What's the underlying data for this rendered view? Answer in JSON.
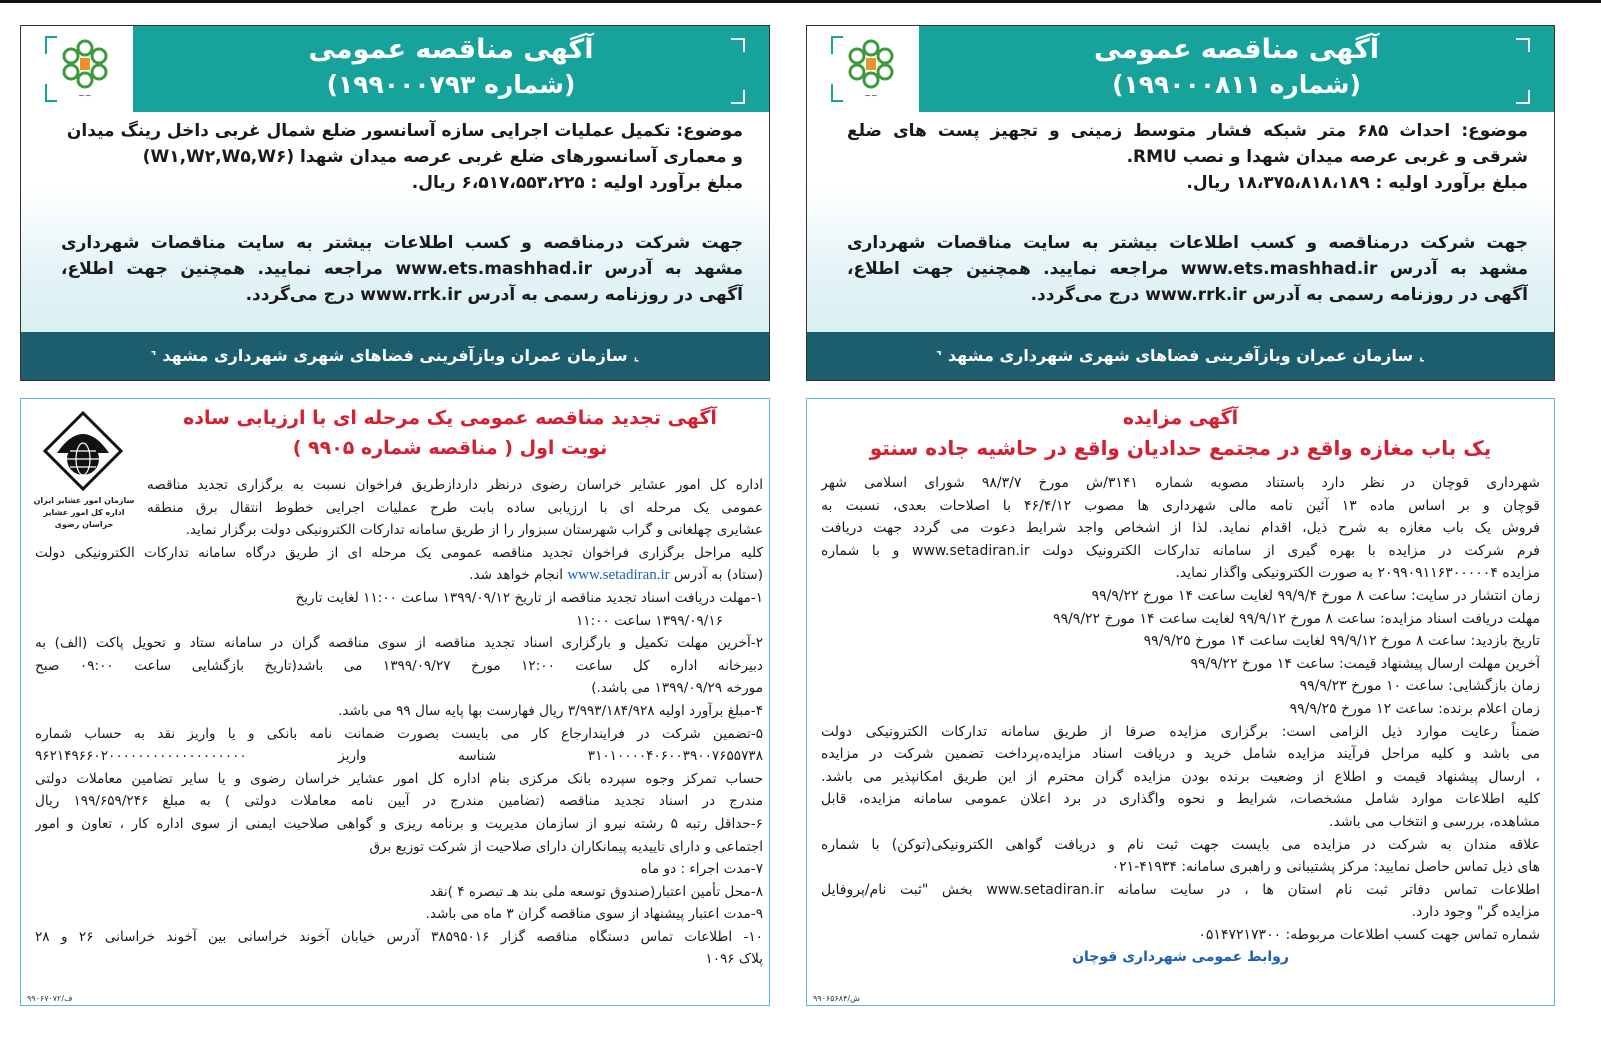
{
  "tender_right": {
    "title": "آگهی مناقصه عمومی",
    "number": "(شماره ۱۹۹۰۰۰۸۱۱)",
    "lines": [
      "موضوع: احداث ۶۸۵ متر شبکه فشار متوسط زمینی و تجهیز پست های ضلع",
      "شرقی و غربی عرصه میدان شهدا و نصب RMU.",
      "مبلغ برآورد اولیه : ۱۸،۳۷۵،۸۱۸،۱۸۹ ریال."
    ],
    "info": [
      "جهت شرکت درمناقصه و کسب اطلاعات بیشتر به سایت مناقصات شهرداری",
      "مشهد به آدرس www.ets.mashhad.ir مراجعه نمایید. همچنین جهت اطلاع،",
      "آگهی در روزنامه رسمی به آدرس www.rrk.ir درج می‌گردد."
    ],
    "footer": "سازمان عمران وبازآفرینی فضاهای شهری شهرداری مشهد"
  },
  "tender_left": {
    "title": "آگهی مناقصه عمومی",
    "number": "(شماره ۱۹۹۰۰۰۷۹۳)",
    "lines": [
      "موضوع: تکمیل عملیات اجرایی سازه آسانسور ضلع شمال غربی داخل رینگ میدان W۵",
      "و معماری آسانسورهای ضلع غربی عرصه میدان شهدا (W۱,W۲,W۵,W۶)",
      "مبلغ برآورد اولیه : ۶،۵۱۷،۵۵۳،۲۲۵ ریال."
    ],
    "info": [
      "جهت شرکت درمناقصه و کسب اطلاعات بیشتر به سایت مناقصات شهرداری",
      "مشهد به آدرس www.ets.mashhad.ir مراجعه نمایید. همچنین جهت اطلاع،",
      "آگهی در روزنامه رسمی به آدرس www.rrk.ir درج می‌گردد."
    ],
    "footer": "سازمان عمران وبازآفرینی فضاهای شهری شهرداری مشهد"
  },
  "auction": {
    "title": "آگهی مزایده",
    "subtitle": "یک باب مغازه واقع در مجتمع حدادیان واقع در حاشیه جاده سنتو",
    "lines": [
      "شهرداری قوچان در نظر دارد باستناد مصوبه شماره ۳۱۴۱/ش مورخ ۹۸/۳/۷ شورای اسلامی شهر",
      "قوچان و بر اساس ماده ۱۳ آئین نامه مالی شهرداری ها مصوب ۴۶/۴/۱۲ با اصلاحات بعدی، نسبت به",
      "فروش یک باب مغازه به شرح ذیل، اقدام نماید. لذا از اشخاص واجد شرایط دعوت می گردد جهت دریافت",
      "فرم شرکت در مزایده با بهره گیری از سامانه تدارکات الکترونیک دولت www.setadiran.ir و با شماره",
      "مزایده ۲۰۹۹۰۹۱۱۶۳۰۰۰۰۰۴ به صورت الکترونیکی واگذار نماید.",
      "زمان انتشار در سایت: ساعت ۸ مورخ ۹۹/۹/۴ لغایت ساعت ۱۴ مورخ ۹۹/۹/۲۲",
      "مهلت دریافت اسناد مزایده: ساعت ۸ مورخ ۹۹/۹/۱۲ لغایت ساعت ۱۴ مورخ ۹۹/۹/۲۲",
      "تاریخ بازدید: ساعت ۸ مورخ ۹۹/۹/۱۲ لغایت ساعت ۱۴ مورخ ۹۹/۹/۲۵",
      "آخرین مهلت ارسال پیشنهاد قیمت: ساعت ۱۴ مورخ ۹۹/۹/۲۲",
      "زمان بازگشایی: ساعت ۱۰ مورخ ۹۹/۹/۲۳",
      "زمان اعلام برنده: ساعت ۱۲ مورخ ۹۹/۹/۲۵",
      "ضمناً رعایت موارد ذیل الزامی است: برگزاری مزایده صرفا از طریق سامانه تدارکات الکترونیکی دولت",
      "می باشد و کلیه مراحل فرآیند مزایده شامل خرید و دریافت اسناد مزایده،پرداخت تضمین شرکت در مزایده",
      "، ارسال پیشنهاد قیمت و اطلاع از وضعیت برنده بودن مزایده گران محترم از این طریق امکانپذیر می باشد.",
      "کلیه اطلاعات موارد شامل مشخصات، شرایط و نحوه واگذاری در برد اعلان عمومی سامانه مزایده، قابل",
      "مشاهده، بررسی و انتخاب می باشد.",
      "علاقه مندان به شرکت در مزایده می بایست جهت ثبت نام و دریافت گواهی الکترونیکی(توکن) با شماره",
      "های ذیل تماس حاصل نمایید: مرکز پشتیبانی و راهبری سامانه: ۴۱۹۳۴-۰۲۱",
      "اطلاعات تماس دفاتر ثبت نام استان ها ، در سایت سامانه www.setadiran.ir بخش \"ثبت نام/پروفایل",
      "مزایده گر\" وجود دارد.",
      "شماره تماس جهت کسب اطلاعات مربوطه: ۰۵۱۴۷۲۱۷۳۰۰"
    ],
    "signature": "روابط عمومی شهرداری قوچان",
    "code": "۹۹۰۶۵۶۸۴/ش"
  },
  "renewed_tender": {
    "title": "آگهی تجدید مناقصه عمومی یک مرحله ای با ارزیابی ساده",
    "subtitle": "نوبت اول ( مناقصه شماره ۹۹۰۵ )",
    "org_caption_1": "سازمان امور عشایر ایران",
    "org_caption_2": "اداره کل امور عشایر خراسان رضوی",
    "lines": [
      "اداره کل امور عشایر خراسان رضوی درنظر داردازطریق فراخوان نسبت به برگزاری تجدید مناقصه",
      "عمومی یک مرحله ای با ارزیابی ساده بابت طرح عملیات اجرایی خطوط انتقال برق منطقه",
      "عشایری چهلغانی و گراب شهرستان سبزوار را از طریق سامانه تدارکات الکترونیکی دولت برگزار نماید.",
      "کلیه مراحل برگزاری فراخوان تجدید مناقصه عمومی یک مرحله ای از طریق درگاه سامانه تدارکات الکترونیکی دولت",
      "(ستاد) به آدرس",
      "۱-مهلت دریافت اسناد تجدید مناقصه از تاریخ ۱۳۹۹/۰۹/۱۲ ساعت ۱۱:۰۰ لغایت تاریخ",
      "۱۳۹۹/۰۹/۱۶ ساعت ۱۱:۰۰",
      "۲-آخرین مهلت تکمیل و بارگزاری اسناد تجدید مناقصه از سوی مناقصه گران در سامانه ستاد و تحویل پاکت (الف) به",
      "دبیرخانه اداره کل ساعت ۱۲:۰۰ مورخ ۱۳۹۹/۰۹/۲۷ می باشد(تاریخ بازگشایی ساعت ۰۹:۰۰ صبح",
      "مورخه ۱۳۹۹/۰۹/۲۹ می باشد.)",
      "۴-مبلغ برآورد اولیه ۳/۹۹۳/۱۸۴/۹۲۸ ریال فهارست بها پایه سال ۹۹ می باشد.",
      "۵-تضمین شرکت در فرایندارجاع کار می بایست بصورت ضمانت نامه بانکی و یا واریز نقد به حساب شماره",
      "۳۱۰۱۰۰۰۰۴۰۶۰۰۳۹۰۰۷۶۵۵۷۳۸ شناسه واریز ۹۶۲۱۴۹۶۶۰۲۰۰۰۰۰۰۰۰۰۰۰۰۰۰۰۰۰۰۰",
      "حساب تمرکز وجوه سپرده بانک مرکزی بنام اداره کل امور عشایر خراسان رضوی و یا سایر تضامین معاملات دولتی",
      "مندرج در اسناد تجدید مناقصه (تضامین مندرج در آیین نامه معاملات دولتی ) به مبلغ ۱۹۹/۶۵۹/۲۴۶ ریال",
      "۶-حداقل رتبه ۵ رشته نیرو از سازمان مدیریت و برنامه ریزی و گواهی صلاحیت ایمنی از سوی اداره کار ، تعاون و امور",
      "اجتماعی و دارای تاییدیه پیمانکاران دارای صلاحیت از شرکت توزیع برق",
      "۷-مدت اجراء : دو ماه",
      "۸-محل تأمین اعتبار(صندوق توسعه ملی بند هـ تبصره ۴ )نقد",
      "۹-مدت اعتبار پیشنهاد از سوی مناقصه گران ۳ ماه می باشد.",
      "۱۰- اطلاعات تماس دستگاه مناقصه گزار ۳۸۵۹۵۰۱۶ آدرس خیابان آخوند خراسانی بین آخوند خراسانی ۲۶ و ۲۸",
      "پلاک ۱۰۹۶"
    ],
    "link": "www.setadiran.ir",
    "link_tail": "انجام خواهد شد.",
    "code": "۹۹۰۶۷۰۷۲/ف"
  },
  "colors": {
    "header_teal": "#17a39b",
    "footer_teal": "#1c5e6d",
    "notice_border": "#56b9dc",
    "title_red": "#d42030",
    "link_blue": "#1f5fb3"
  }
}
